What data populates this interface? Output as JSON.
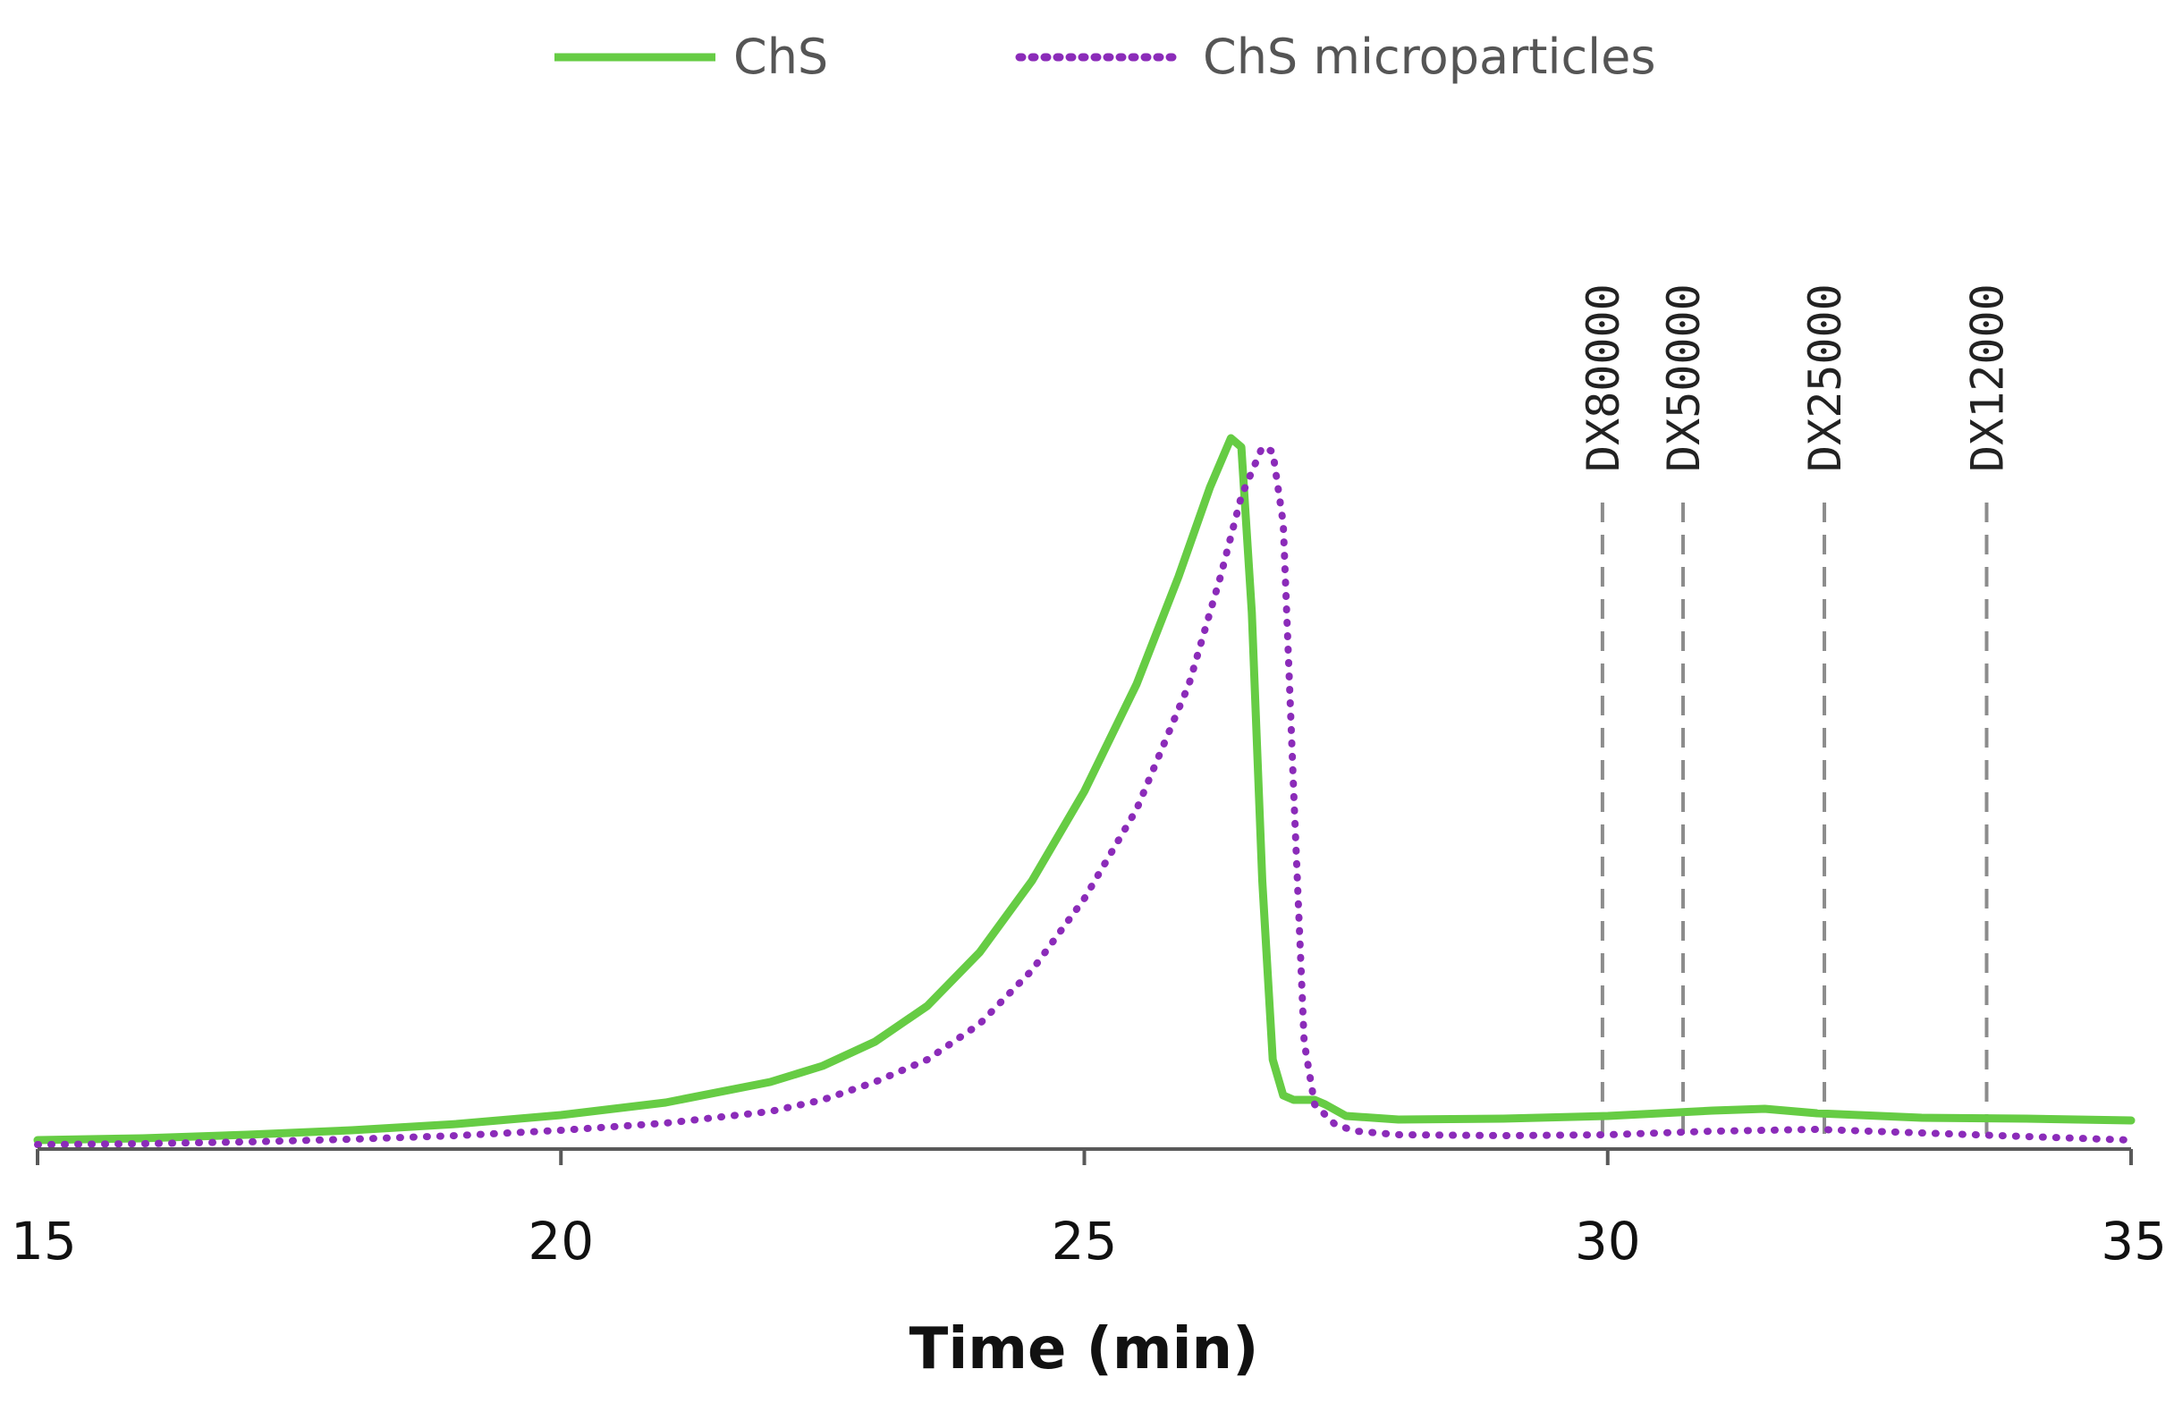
{
  "chart_data": {
    "type": "line",
    "title": "",
    "xlabel": "Time (min)",
    "ylabel": "",
    "xlim": [
      15,
      35
    ],
    "ylim": [
      0,
      1
    ],
    "x_ticks": [
      15,
      20,
      25,
      30,
      35
    ],
    "grid": false,
    "legend_position": "top-center",
    "series": [
      {
        "name": "ChS",
        "color": "#66cc44",
        "style": "solid",
        "x": [
          15,
          16,
          17,
          18,
          19,
          20,
          21,
          22,
          22.5,
          23,
          23.5,
          24,
          24.5,
          25,
          25.5,
          25.9,
          26.2,
          26.4,
          26.5,
          26.6,
          26.7,
          26.8,
          26.9,
          27.0,
          27.1,
          27.2,
          27.3,
          27.5,
          28,
          29,
          30,
          31,
          31.5,
          32,
          33,
          34,
          35
        ],
        "y": [
          0.01,
          0.012,
          0.016,
          0.021,
          0.028,
          0.038,
          0.052,
          0.075,
          0.093,
          0.12,
          0.16,
          0.22,
          0.3,
          0.4,
          0.52,
          0.64,
          0.74,
          0.795,
          0.785,
          0.6,
          0.3,
          0.1,
          0.06,
          0.055,
          0.055,
          0.055,
          0.05,
          0.037,
          0.033,
          0.034,
          0.037,
          0.043,
          0.045,
          0.04,
          0.035,
          0.034,
          0.032
        ]
      },
      {
        "name": "ChS microparticles",
        "color": "#8b2bb9",
        "style": "dotted",
        "x": [
          15,
          16,
          17,
          18,
          19,
          20,
          21,
          22,
          22.5,
          23,
          23.5,
          24,
          24.5,
          25,
          25.5,
          26,
          26.3,
          26.5,
          26.7,
          26.8,
          26.9,
          27.0,
          27.1,
          27.2,
          27.4,
          27.6,
          28,
          29,
          30,
          31,
          32,
          33,
          34,
          35
        ],
        "y": [
          0.005,
          0.006,
          0.008,
          0.011,
          0.015,
          0.021,
          0.029,
          0.042,
          0.055,
          0.075,
          0.1,
          0.14,
          0.2,
          0.28,
          0.38,
          0.52,
          0.64,
          0.73,
          0.785,
          0.78,
          0.7,
          0.4,
          0.12,
          0.05,
          0.027,
          0.02,
          0.016,
          0.015,
          0.016,
          0.02,
          0.022,
          0.018,
          0.014,
          0.01
        ]
      }
    ],
    "markers": [
      {
        "label": "DX80000",
        "x": 29.95
      },
      {
        "label": "DX50000",
        "x": 30.72
      },
      {
        "label": "DX25000",
        "x": 32.07
      },
      {
        "label": "DX12000",
        "x": 33.62
      }
    ]
  }
}
